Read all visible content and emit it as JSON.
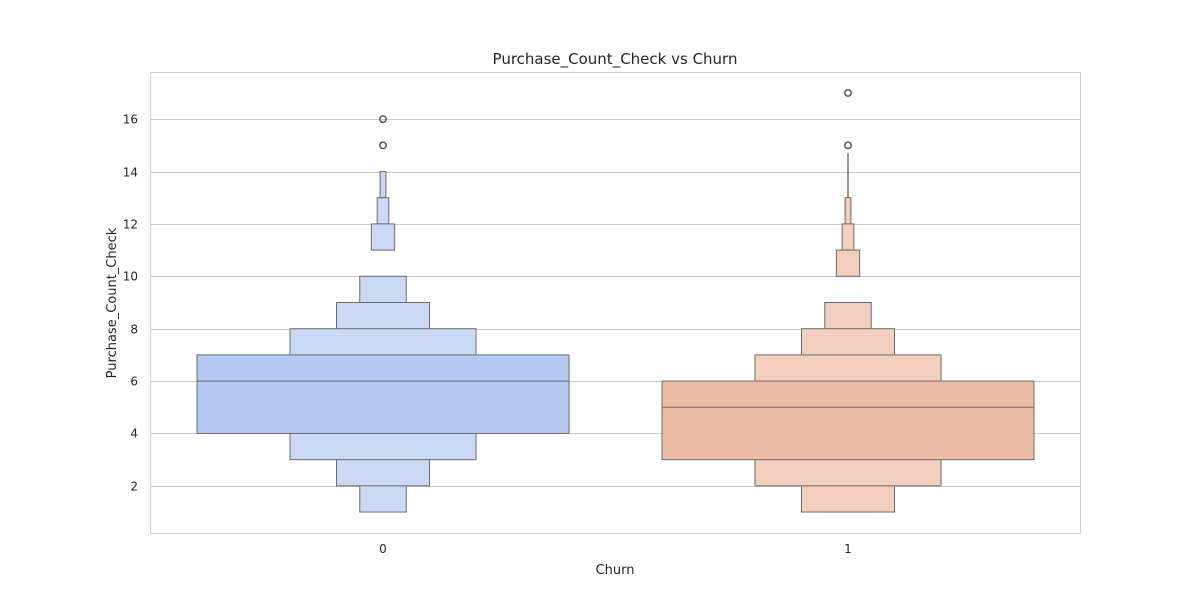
{
  "chart_data": {
    "type": "boxen",
    "title": "Purchase_Count_Check vs Churn",
    "xlabel": "Churn",
    "ylabel": "Purchase_Count_Check",
    "categories": [
      "0",
      "1"
    ],
    "y_ticks": [
      2,
      4,
      6,
      8,
      10,
      12,
      14,
      16
    ],
    "ylim": [
      0.2,
      17.8
    ],
    "grid": true,
    "colors": {
      "0": "#b4c8f2",
      "1": "#ecbba4"
    },
    "series": [
      {
        "category": "0",
        "median": 6,
        "levels": [
          {
            "lower": 4,
            "upper": 7,
            "relative_width": 1.0,
            "tint": 0.0
          },
          {
            "lower": 3,
            "upper": 8,
            "relative_width": 0.5,
            "tint": 0.3
          },
          {
            "lower": 2,
            "upper": 9,
            "relative_width": 0.25,
            "tint": 0.3
          },
          {
            "lower": 1,
            "upper": 10,
            "relative_width": 0.125,
            "tint": 0.3
          },
          {
            "lower": 11,
            "upper": 11,
            "relative_width": 0.0625,
            "tint": 0.3
          },
          {
            "lower": 12,
            "upper": 12,
            "relative_width": 0.03125,
            "tint": 0.3
          },
          {
            "lower": 13,
            "upper": 13,
            "relative_width": 0.015625,
            "tint": 0.3
          }
        ],
        "whisker": [
          13,
          14
        ],
        "outliers": [
          15,
          16
        ]
      },
      {
        "category": "1",
        "median": 5,
        "levels": [
          {
            "lower": 3,
            "upper": 6,
            "relative_width": 1.0,
            "tint": 0.0
          },
          {
            "lower": 2,
            "upper": 7,
            "relative_width": 0.5,
            "tint": 0.3
          },
          {
            "lower": 1,
            "upper": 8,
            "relative_width": 0.25,
            "tint": 0.3
          },
          {
            "lower": 1,
            "upper": 9,
            "relative_width": 0.125,
            "tint": 0.3
          },
          {
            "lower": 10,
            "upper": 10,
            "relative_width": 0.0625,
            "tint": 0.3
          },
          {
            "lower": 11,
            "upper": 11,
            "relative_width": 0.03125,
            "tint": 0.3
          },
          {
            "lower": 12,
            "upper": 12,
            "relative_width": 0.015625,
            "tint": 0.3
          }
        ],
        "whisker": [
          12,
          14.7
        ],
        "outliers": [
          15,
          17
        ]
      }
    ]
  }
}
